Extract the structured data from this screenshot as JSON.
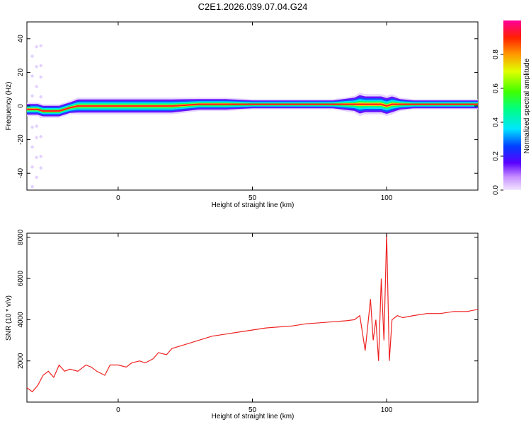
{
  "title": "C2E1.2026.039.07.04.G24",
  "chart_data": [
    {
      "type": "heatmap",
      "xlabel": "Height of straight line (km)",
      "ylabel": "Frequency (Hz)",
      "xlim": [
        -34,
        134
      ],
      "ylim": [
        -50,
        50
      ],
      "xticks": [
        0,
        50,
        100
      ],
      "yticks": [
        -40,
        -20,
        0,
        20,
        40
      ],
      "colorbar": {
        "label": "Normalized spectral amplitude",
        "range": [
          0,
          1
        ],
        "ticks": [
          "0.0",
          "0.2",
          "0.4",
          "0.6",
          "0.8"
        ]
      },
      "ridge": {
        "x": [
          -34,
          -30,
          -28,
          -25,
          -22,
          -20,
          -18,
          -15,
          -10,
          -5,
          0,
          5,
          10,
          15,
          20,
          30,
          40,
          50,
          60,
          70,
          80,
          88,
          90,
          92,
          95,
          98,
          100,
          102,
          105,
          110,
          120,
          134
        ],
        "freq": [
          -2,
          -2,
          -3,
          -3,
          -3,
          -2,
          -1,
          0,
          0,
          0,
          0,
          0,
          0,
          0,
          0,
          1,
          1,
          1,
          1,
          1,
          1,
          1,
          1,
          1,
          1,
          1,
          0,
          1,
          1,
          1,
          1,
          1
        ],
        "width": [
          4,
          4,
          4,
          4,
          4,
          4,
          4,
          5,
          5,
          5,
          5,
          5,
          5,
          5,
          5,
          4,
          4,
          3,
          3,
          3,
          3,
          5,
          7,
          6,
          6,
          6,
          6,
          6,
          4,
          3,
          3,
          3
        ]
      }
    },
    {
      "type": "line",
      "xlabel": "Height of straight line (km)",
      "ylabel": "SNR (10 * v/v)",
      "xlim": [
        -34,
        134
      ],
      "ylim": [
        0,
        8200
      ],
      "xticks": [
        0,
        50,
        100
      ],
      "yticks": [
        2000,
        4000,
        6000,
        8000
      ],
      "series": [
        {
          "color": "#ee2222",
          "x": [
            -34,
            -32,
            -30,
            -28,
            -26,
            -24,
            -22,
            -20,
            -18,
            -15,
            -12,
            -10,
            -8,
            -5,
            -3,
            0,
            3,
            5,
            8,
            10,
            13,
            15,
            18,
            20,
            25,
            30,
            35,
            40,
            45,
            50,
            55,
            60,
            65,
            70,
            75,
            80,
            85,
            88,
            90,
            92,
            94,
            95,
            96,
            97,
            98,
            99,
            100,
            101,
            102,
            104,
            106,
            110,
            115,
            120,
            125,
            130,
            134
          ],
          "y": [
            700,
            500,
            800,
            1300,
            1500,
            1200,
            1800,
            1500,
            1600,
            1500,
            1800,
            1700,
            1500,
            1300,
            1800,
            1800,
            1700,
            1900,
            2000,
            1900,
            2100,
            2400,
            2300,
            2600,
            2800,
            3000,
            3200,
            3300,
            3400,
            3500,
            3600,
            3650,
            3700,
            3800,
            3850,
            3900,
            3950,
            4000,
            4200,
            2500,
            5000,
            3000,
            4000,
            2000,
            6000,
            3000,
            8200,
            2000,
            4000,
            4200,
            4100,
            4200,
            4300,
            4300,
            4400,
            4400,
            4500
          ]
        }
      ]
    }
  ]
}
